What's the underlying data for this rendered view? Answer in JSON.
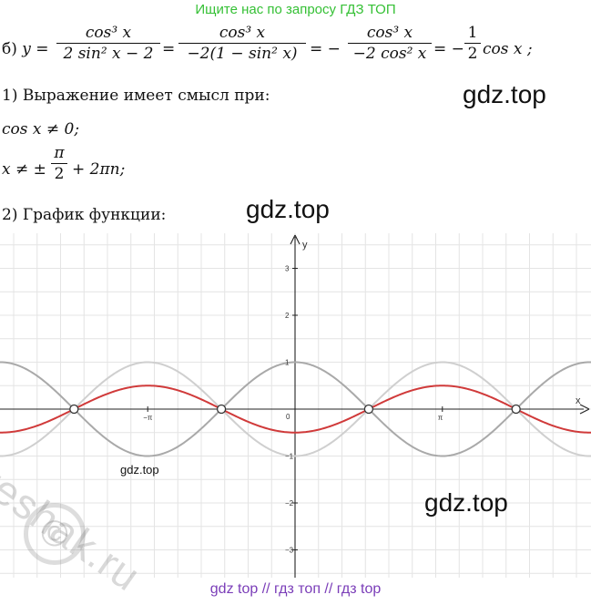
{
  "banner_top": "Ищите нас по запросу ГДЗ ТОП",
  "equation": {
    "prefix": "б) ",
    "y": "y",
    "eq": "=",
    "minus": "−",
    "f1_num": "cos³ x",
    "f1_den": "2 sin² x − 2",
    "f2_num": "cos³ x",
    "f2_den": "−2(1 − sin² x)",
    "f3_num": "cos³ x",
    "f3_den": "−2 cos² x",
    "f4_num": "1",
    "f4_den": "2",
    "tail": "cos x ;"
  },
  "line1": "1) Выражение имеет смысл при:",
  "line2": "cos x ≠ 0;",
  "line3_lhs": "x ≠ ±",
  "line3_num": "π",
  "line3_den": "2",
  "line3_rhs": "+ 2πn;",
  "line4": "2) График функции:",
  "watermarks": {
    "wm1": "gdz.top",
    "wm2": "gdz.top",
    "wm3": "gdz.top",
    "wm4": "gdz.top",
    "reshak": "reshak.ru",
    "copyright": "©"
  },
  "banner_bottom": "gdz top  //  гдз топ  //  гдз top",
  "chart_data": {
    "type": "line",
    "title": "",
    "xlabel": "x",
    "ylabel": "y",
    "xlim": [
      -5.1,
      9.0
    ],
    "ylim": [
      -3.4,
      3.6
    ],
    "x_ticks": [
      {
        "value": -3.14159,
        "label": "−π"
      },
      {
        "value": 3.14159,
        "label": "π"
      }
    ],
    "y_ticks": [
      -3,
      -2,
      -1,
      1,
      2,
      3
    ],
    "origin_label": "0",
    "grid": true,
    "series": [
      {
        "formula": "cos",
        "color": "#a9a9a9",
        "amplitude": 1,
        "phase": 0
      },
      {
        "formula": "-cos",
        "color": "#cfcfcf",
        "amplitude": -1,
        "phase": 0
      },
      {
        "formula": "-0.5cos",
        "color": "#d03a3a",
        "amplitude": -0.5,
        "phase": 0
      }
    ],
    "open_points": [
      {
        "x": -4.7124,
        "y": 0
      },
      {
        "x": -1.5708,
        "y": 0
      },
      {
        "x": 1.5708,
        "y": 0
      },
      {
        "x": 4.7124,
        "y": 0
      }
    ]
  }
}
